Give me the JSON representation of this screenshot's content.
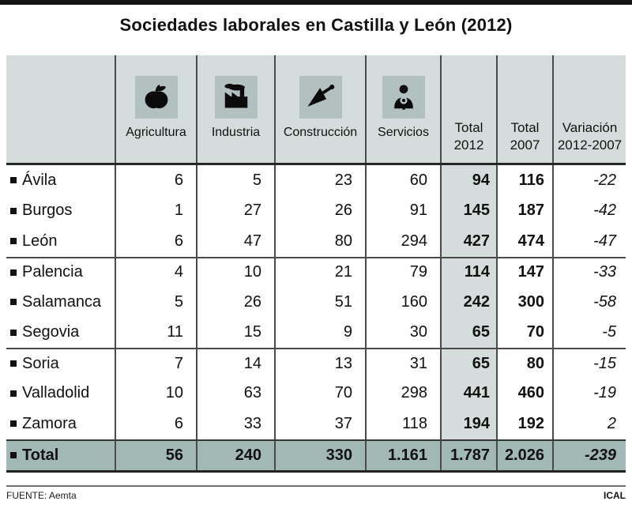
{
  "title": "Sociedades laborales en Castilla y León (2012)",
  "table": {
    "columns": [
      {
        "label": "Agricultura",
        "icon": "apple-icon"
      },
      {
        "label": "Industria",
        "icon": "factory-icon"
      },
      {
        "label": "Construcción",
        "icon": "trowel-icon"
      },
      {
        "label": "Servicios",
        "icon": "waiter-icon"
      },
      {
        "line1": "Total",
        "line2": "2012"
      },
      {
        "line1": "Total",
        "line2": "2007"
      },
      {
        "line1": "Variación",
        "line2": "2012-2007"
      }
    ],
    "rows": [
      {
        "name": "Ávila",
        "values": [
          "6",
          "5",
          "23",
          "60",
          "94",
          "116",
          "-22"
        ]
      },
      {
        "name": "Burgos",
        "values": [
          "1",
          "27",
          "26",
          "91",
          "145",
          "187",
          "-42"
        ]
      },
      {
        "name": "León",
        "values": [
          "6",
          "47",
          "80",
          "294",
          "427",
          "474",
          "-47"
        ]
      },
      {
        "name": "Palencia",
        "values": [
          "4",
          "10",
          "21",
          "79",
          "114",
          "147",
          "-33"
        ]
      },
      {
        "name": "Salamanca",
        "values": [
          "5",
          "26",
          "51",
          "160",
          "242",
          "300",
          "-58"
        ]
      },
      {
        "name": "Segovia",
        "values": [
          "11",
          "15",
          "9",
          "30",
          "65",
          "70",
          "-5"
        ]
      },
      {
        "name": "Soria",
        "values": [
          "7",
          "14",
          "13",
          "31",
          "65",
          "80",
          "-15"
        ]
      },
      {
        "name": "Valladolid",
        "values": [
          "10",
          "63",
          "70",
          "298",
          "441",
          "460",
          "-19"
        ]
      },
      {
        "name": "Zamora",
        "values": [
          "6",
          "33",
          "37",
          "118",
          "194",
          "192",
          "2"
        ]
      }
    ],
    "total_row": {
      "name": "Total",
      "values": [
        "56",
        "240",
        "330",
        "1.161",
        "1.787",
        "2.026",
        "-239"
      ]
    }
  },
  "footer": {
    "source": "FUENTE: Aemta",
    "credit": "ICAL"
  },
  "colors": {
    "header_bg": "#d5dddc",
    "icon_square_bg": "#b2c0bf",
    "total_row_bg": "#a2b8b5",
    "grid_line": "#4a4a4a",
    "top_bar": "#131313"
  },
  "chart_data": {
    "type": "table",
    "title": "Sociedades laborales en Castilla y León (2012)",
    "columns": [
      "Agricultura",
      "Industria",
      "Construcción",
      "Servicios",
      "Total 2012",
      "Total 2007",
      "Variación 2012-2007"
    ],
    "rows": [
      [
        "Ávila",
        6,
        5,
        23,
        60,
        94,
        116,
        -22
      ],
      [
        "Burgos",
        1,
        27,
        26,
        91,
        145,
        187,
        -42
      ],
      [
        "León",
        6,
        47,
        80,
        294,
        427,
        474,
        -47
      ],
      [
        "Palencia",
        4,
        10,
        21,
        79,
        114,
        147,
        -33
      ],
      [
        "Salamanca",
        5,
        26,
        51,
        160,
        242,
        300,
        -58
      ],
      [
        "Segovia",
        11,
        15,
        9,
        30,
        65,
        70,
        -5
      ],
      [
        "Soria",
        7,
        14,
        13,
        31,
        65,
        80,
        -15
      ],
      [
        "Valladolid",
        10,
        63,
        70,
        298,
        441,
        460,
        -19
      ],
      [
        "Zamora",
        6,
        33,
        37,
        118,
        194,
        192,
        2
      ]
    ],
    "total": [
      "Total",
      56,
      240,
      330,
      1161,
      1787,
      2026,
      -239
    ],
    "source": "FUENTE: Aemta",
    "credit": "ICAL"
  }
}
